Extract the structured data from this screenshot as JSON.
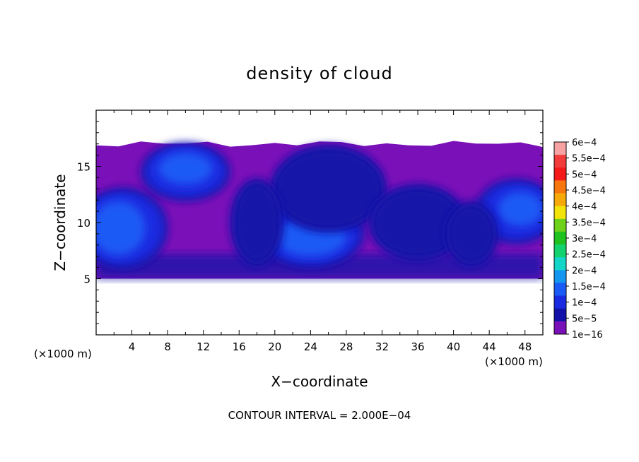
{
  "chart_data": {
    "type": "heatmap",
    "title": "density of cloud",
    "xlabel": "X−coordinate",
    "ylabel": "Z−coordinate",
    "x_unit_left": "(×1000 m)",
    "x_unit_right": "(×1000 m)",
    "xlim": [
      0,
      50
    ],
    "ylim": [
      0,
      20
    ],
    "x_ticks": [
      4,
      8,
      12,
      16,
      20,
      24,
      28,
      32,
      36,
      40,
      44,
      48
    ],
    "y_ticks": [
      5,
      10,
      15
    ],
    "footer": "CONTOUR INTERVAL = 2.000E−04",
    "colorbar": {
      "labels": [
        "6e−4",
        "5.5e−4",
        "5e−4",
        "4.5e−4",
        "4e−4",
        "3.5e−4",
        "3e−4",
        "2.5e−4",
        "2e−4",
        "1.5e−4",
        "1e−4",
        "5e−5",
        "1e−16"
      ],
      "colors": [
        "#f7a3a3",
        "#f23c3c",
        "#f51a1a",
        "#f7760d",
        "#f5aa0a",
        "#f2e40a",
        "#6ed11a",
        "#1fc21f",
        "#14d26e",
        "#14d6c8",
        "#1496f0",
        "#1a5af5",
        "#1a2ae0",
        "#1212a8",
        "#7a10b8"
      ]
    },
    "cloud_base_z": 5,
    "cloud_top_z": 17,
    "cloud_blobs": [
      {
        "x": 3,
        "z": 9.5,
        "rx": 4.5,
        "rz": 3.2,
        "level": 2
      },
      {
        "x": 2.5,
        "z": 9.5,
        "rx": 3,
        "rz": 2.4,
        "level": 3
      },
      {
        "x": 10,
        "z": 14.5,
        "rx": 4.5,
        "rz": 2.2,
        "level": 2
      },
      {
        "x": 10,
        "z": 14.8,
        "rx": 3,
        "rz": 1.4,
        "level": 3
      },
      {
        "x": 24,
        "z": 9,
        "rx": 5.5,
        "rz": 2.6,
        "level": 2
      },
      {
        "x": 24,
        "z": 8.8,
        "rx": 4,
        "rz": 1.8,
        "level": 3
      },
      {
        "x": 26,
        "z": 13,
        "rx": 6,
        "rz": 3.5,
        "level": 1
      },
      {
        "x": 18,
        "z": 10,
        "rx": 2.5,
        "rz": 3.5,
        "level": 1
      },
      {
        "x": 36,
        "z": 10,
        "rx": 5,
        "rz": 3,
        "level": 1
      },
      {
        "x": 47,
        "z": 11,
        "rx": 4,
        "rz": 2.5,
        "level": 2
      },
      {
        "x": 47.5,
        "z": 11.2,
        "rx": 2.5,
        "rz": 1.5,
        "level": 3
      },
      {
        "x": 42,
        "z": 9,
        "rx": 2.5,
        "rz": 2.5,
        "level": 1
      }
    ]
  }
}
